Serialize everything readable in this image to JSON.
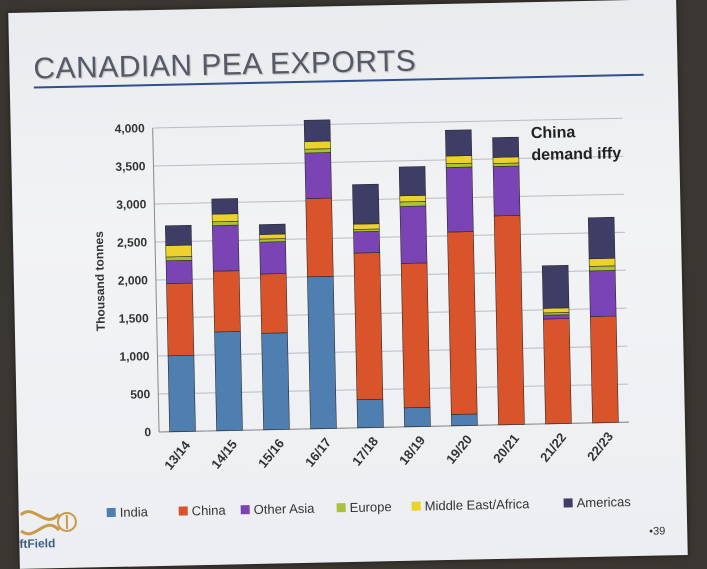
{
  "slide": {
    "title": "CANADIAN PEA EXPORTS",
    "page_number": "•39",
    "logo_text": "ftField"
  },
  "colors": {
    "India": "#4e7fb0",
    "China": "#d9542a",
    "Other Asia": "#7b44b4",
    "Europe": "#a8c23c",
    "Middle East/Africa": "#ecd22a",
    "Americas": "#3d3d66",
    "grid": "#b9bcc2",
    "text": "#333333"
  },
  "chart_data": {
    "type": "bar",
    "stacked": true,
    "categories": [
      "13/14",
      "14/15",
      "15/16",
      "16/17",
      "17/18",
      "18/19",
      "19/20",
      "20/21",
      "21/22",
      "22/23"
    ],
    "series": [
      {
        "name": "India",
        "values": [
          1000,
          1300,
          1270,
          2000,
          370,
          250,
          150,
          0,
          0,
          0
        ]
      },
      {
        "name": "China",
        "values": [
          950,
          800,
          780,
          1030,
          1930,
          1900,
          2400,
          2750,
          1380,
          1400
        ]
      },
      {
        "name": "Other Asia",
        "values": [
          300,
          600,
          420,
          600,
          280,
          750,
          850,
          650,
          50,
          600
        ]
      },
      {
        "name": "Europe",
        "values": [
          50,
          50,
          40,
          50,
          30,
          60,
          50,
          40,
          30,
          60
        ]
      },
      {
        "name": "Middle East/Africa",
        "values": [
          150,
          100,
          60,
          100,
          70,
          80,
          100,
          80,
          60,
          100
        ]
      },
      {
        "name": "Americas",
        "values": [
          260,
          200,
          130,
          280,
          520,
          380,
          340,
          260,
          560,
          540
        ]
      }
    ],
    "ylabel": "Thousand tonnes",
    "xlabel": "",
    "ylim": [
      0,
      4000
    ],
    "yticks": [
      "0",
      "500",
      "1,000",
      "1,500",
      "2,000",
      "2,500",
      "3,000",
      "3,500",
      "4,000"
    ],
    "grid": true,
    "legend_position": "bottom",
    "annotation": [
      "China",
      "demand iffy"
    ]
  }
}
